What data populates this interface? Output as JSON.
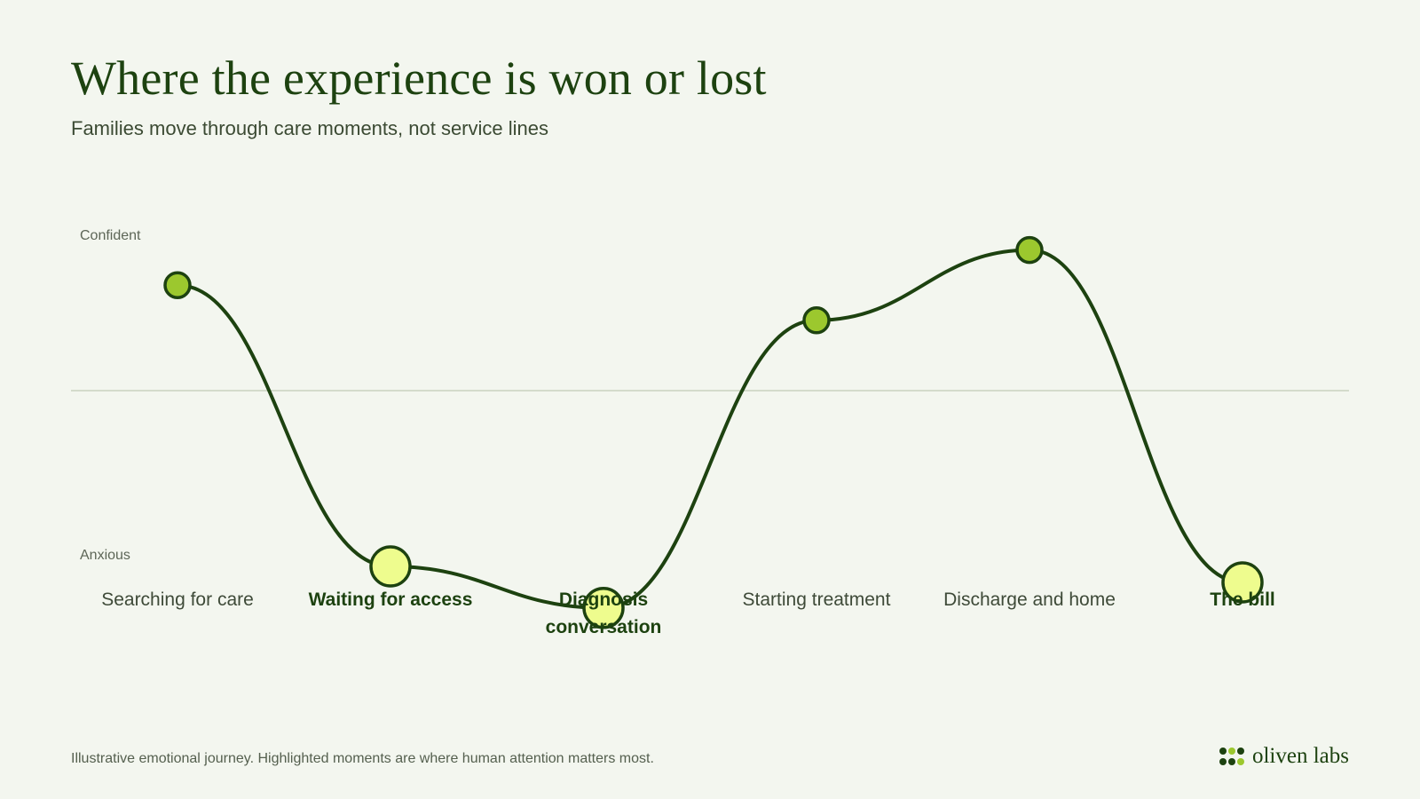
{
  "header": {
    "title": "Where the experience is won or lost",
    "subtitle": "Families move through care moments, not service lines"
  },
  "axis": {
    "top_label": "Confident",
    "bottom_label": "Anxious"
  },
  "chart_data": {
    "type": "line",
    "ylim": [
      -1,
      1
    ],
    "baseline": 0,
    "points": [
      {
        "label": "Searching for care",
        "value": 0.33,
        "highlighted": false
      },
      {
        "label": "Waiting for access",
        "value": -0.55,
        "highlighted": true
      },
      {
        "label": "Diagnosis conversation",
        "value": -0.68,
        "highlighted": true
      },
      {
        "label": "Starting treatment",
        "value": 0.22,
        "highlighted": false
      },
      {
        "label": "Discharge and home",
        "value": 0.44,
        "highlighted": false
      },
      {
        "label": "The bill",
        "value": -0.6,
        "highlighted": true
      }
    ]
  },
  "colors": {
    "line": "#1d4210",
    "normal_fill": "#9cc82e",
    "highlight_fill": "#eefc8e",
    "baseline": "#c9d2bf",
    "background": "#f3f6ef"
  },
  "footer": {
    "note": "Illustrative emotional journey. Highlighted moments are where human attention matters most.",
    "brand": "oliven labs"
  }
}
